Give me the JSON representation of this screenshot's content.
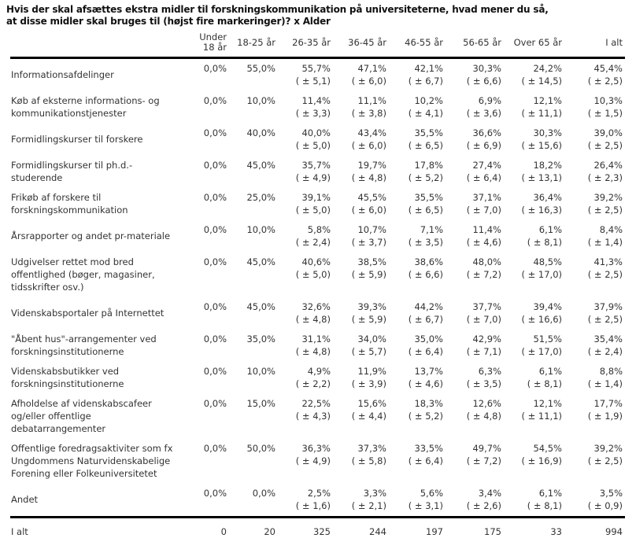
{
  "title": {
    "line1": "Hvis der skal afsættes ekstra midler til forskningskommunikation på universiteterne, hvad mener du så,",
    "line2": "at disse midler skal bruges til (højst fire markeringer)? x Alder"
  },
  "colors": {
    "text": "#333333",
    "title_text": "#111111",
    "rule": "#000000",
    "background": "#ffffff"
  },
  "table": {
    "columns": [
      "Under 18 år",
      "18-25 år",
      "26-35 år",
      "36-45 år",
      "46-55 år",
      "56-65 år",
      "Over 65 år",
      "I alt"
    ],
    "rows": [
      {
        "label": "Informationsafdelinger",
        "values": [
          "0,0%",
          "55,0%",
          "55,7%",
          "47,1%",
          "42,1%",
          "30,3%",
          "24,2%",
          "45,4%"
        ],
        "moe": [
          "",
          "",
          "( ± 5,1)",
          "( ± 6,0)",
          "( ± 6,7)",
          "( ± 6,6)",
          "( ± 14,5)",
          "( ± 2,5)"
        ]
      },
      {
        "label": "Køb af eksterne informations- og kommunikationstjenester",
        "values": [
          "0,0%",
          "10,0%",
          "11,4%",
          "11,1%",
          "10,2%",
          "6,9%",
          "12,1%",
          "10,3%"
        ],
        "moe": [
          "",
          "",
          "( ± 3,3)",
          "( ± 3,8)",
          "( ± 4,1)",
          "( ± 3,6)",
          "( ± 11,1)",
          "( ± 1,5)"
        ]
      },
      {
        "label": "Formidlingskurser til forskere",
        "values": [
          "0,0%",
          "40,0%",
          "40,0%",
          "43,4%",
          "35,5%",
          "36,6%",
          "30,3%",
          "39,0%"
        ],
        "moe": [
          "",
          "",
          "( ± 5,0)",
          "( ± 6,0)",
          "( ± 6,5)",
          "( ± 6,9)",
          "( ± 15,6)",
          "( ± 2,5)"
        ]
      },
      {
        "label": "Formidlingskurser til ph.d.-studerende",
        "values": [
          "0,0%",
          "45,0%",
          "35,7%",
          "19,7%",
          "17,8%",
          "27,4%",
          "18,2%",
          "26,4%"
        ],
        "moe": [
          "",
          "",
          "( ± 4,9)",
          "( ± 4,8)",
          "( ± 5,2)",
          "( ± 6,4)",
          "( ± 13,1)",
          "( ± 2,3)"
        ]
      },
      {
        "label": "Frikøb af forskere til forskningskommunikation",
        "values": [
          "0,0%",
          "25,0%",
          "39,1%",
          "45,5%",
          "35,5%",
          "37,1%",
          "36,4%",
          "39,2%"
        ],
        "moe": [
          "",
          "",
          "( ± 5,0)",
          "( ± 6,0)",
          "( ± 6,5)",
          "( ± 7,0)",
          "( ± 16,3)",
          "( ± 2,5)"
        ]
      },
      {
        "label": "Årsrapporter og andet pr-materiale",
        "values": [
          "0,0%",
          "10,0%",
          "5,8%",
          "10,7%",
          "7,1%",
          "11,4%",
          "6,1%",
          "8,4%"
        ],
        "moe": [
          "",
          "",
          "( ± 2,4)",
          "( ± 3,7)",
          "( ± 3,5)",
          "( ± 4,6)",
          "( ± 8,1)",
          "( ± 1,4)"
        ]
      },
      {
        "label": "Udgivelser rettet mod bred offentlighed (bøger, magasiner, tidsskrifter osv.)",
        "values": [
          "0,0%",
          "45,0%",
          "40,6%",
          "38,5%",
          "38,6%",
          "48,0%",
          "48,5%",
          "41,3%"
        ],
        "moe": [
          "",
          "",
          "( ± 5,0)",
          "( ± 5,9)",
          "( ± 6,6)",
          "( ± 7,2)",
          "( ± 17,0)",
          "( ± 2,5)"
        ]
      },
      {
        "label": "Videnskabsportaler på Internettet",
        "values": [
          "0,0%",
          "45,0%",
          "32,6%",
          "39,3%",
          "44,2%",
          "37,7%",
          "39,4%",
          "37,9%"
        ],
        "moe": [
          "",
          "",
          "( ± 4,8)",
          "( ± 5,9)",
          "( ± 6,7)",
          "( ± 7,0)",
          "( ± 16,6)",
          "( ± 2,5)"
        ]
      },
      {
        "label": "\"Åbent hus\"-arrangementer ved forskningsinstitutionerne",
        "values": [
          "0,0%",
          "35,0%",
          "31,1%",
          "34,0%",
          "35,0%",
          "42,9%",
          "51,5%",
          "35,4%"
        ],
        "moe": [
          "",
          "",
          "( ± 4,8)",
          "( ± 5,7)",
          "( ± 6,4)",
          "( ± 7,1)",
          "( ± 17,0)",
          "( ± 2,4)"
        ]
      },
      {
        "label": "Videnskabsbutikker ved forskningsinstitutionerne",
        "values": [
          "0,0%",
          "10,0%",
          "4,9%",
          "11,9%",
          "13,7%",
          "6,3%",
          "6,1%",
          "8,8%"
        ],
        "moe": [
          "",
          "",
          "( ± 2,2)",
          "( ± 3,9)",
          "( ± 4,6)",
          "( ± 3,5)",
          "( ± 8,1)",
          "( ± 1,4)"
        ]
      },
      {
        "label": "Afholdelse af videnskabscafeer og/eller offentlige debatarrangementer",
        "values": [
          "0,0%",
          "15,0%",
          "22,5%",
          "15,6%",
          "18,3%",
          "12,6%",
          "12,1%",
          "17,7%"
        ],
        "moe": [
          "",
          "",
          "( ± 4,3)",
          "( ± 4,4)",
          "( ± 5,2)",
          "( ± 4,8)",
          "( ± 11,1)",
          "( ± 1,9)"
        ]
      },
      {
        "label": "Offentlige foredragsaktiviter som fx Ungdommens Naturvidenskabelige Forening eller Folkeuniversitetet",
        "values": [
          "0,0%",
          "50,0%",
          "36,3%",
          "37,3%",
          "33,5%",
          "49,7%",
          "54,5%",
          "39,2%"
        ],
        "moe": [
          "",
          "",
          "( ± 4,9)",
          "( ± 5,8)",
          "( ± 6,4)",
          "( ± 7,2)",
          "( ± 16,9)",
          "( ± 2,5)"
        ]
      },
      {
        "label": "Andet",
        "values": [
          "0,0%",
          "0,0%",
          "2,5%",
          "3,3%",
          "5,6%",
          "3,4%",
          "6,1%",
          "3,5%"
        ],
        "moe": [
          "",
          "",
          "( ± 1,6)",
          "( ± 2,1)",
          "( ± 3,1)",
          "( ± 2,6)",
          "( ± 8,1)",
          "( ± 0,9)"
        ]
      }
    ],
    "footer": {
      "label": "I alt",
      "values": [
        "0",
        "20",
        "325",
        "244",
        "197",
        "175",
        "33",
        "994"
      ]
    }
  }
}
